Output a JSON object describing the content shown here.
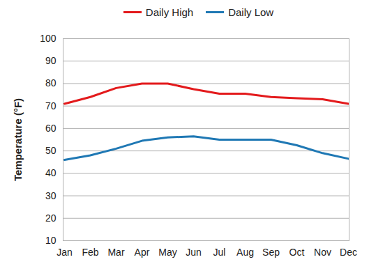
{
  "chart_data": {
    "type": "line",
    "y_label": "Temperature (°F)",
    "categories": [
      "Jan",
      "Feb",
      "Mar",
      "Apr",
      "May",
      "Jun",
      "Jul",
      "Aug",
      "Sep",
      "Oct",
      "Nov",
      "Dec"
    ],
    "series": [
      {
        "name": "Daily High",
        "color": "#e31a1c",
        "values": [
          71,
          74,
          78,
          80,
          80,
          77.5,
          75.5,
          75.5,
          74,
          73.5,
          73,
          71
        ]
      },
      {
        "name": "Daily Low",
        "color": "#1f78b4",
        "values": [
          46,
          48,
          51,
          54.5,
          56,
          56.5,
          55,
          55,
          55,
          52.5,
          49,
          46.5
        ]
      }
    ],
    "ylim": [
      10,
      100
    ],
    "yticks": [
      10,
      20,
      30,
      40,
      50,
      60,
      70,
      80,
      90,
      100
    ],
    "grid": true,
    "legend": "top"
  }
}
